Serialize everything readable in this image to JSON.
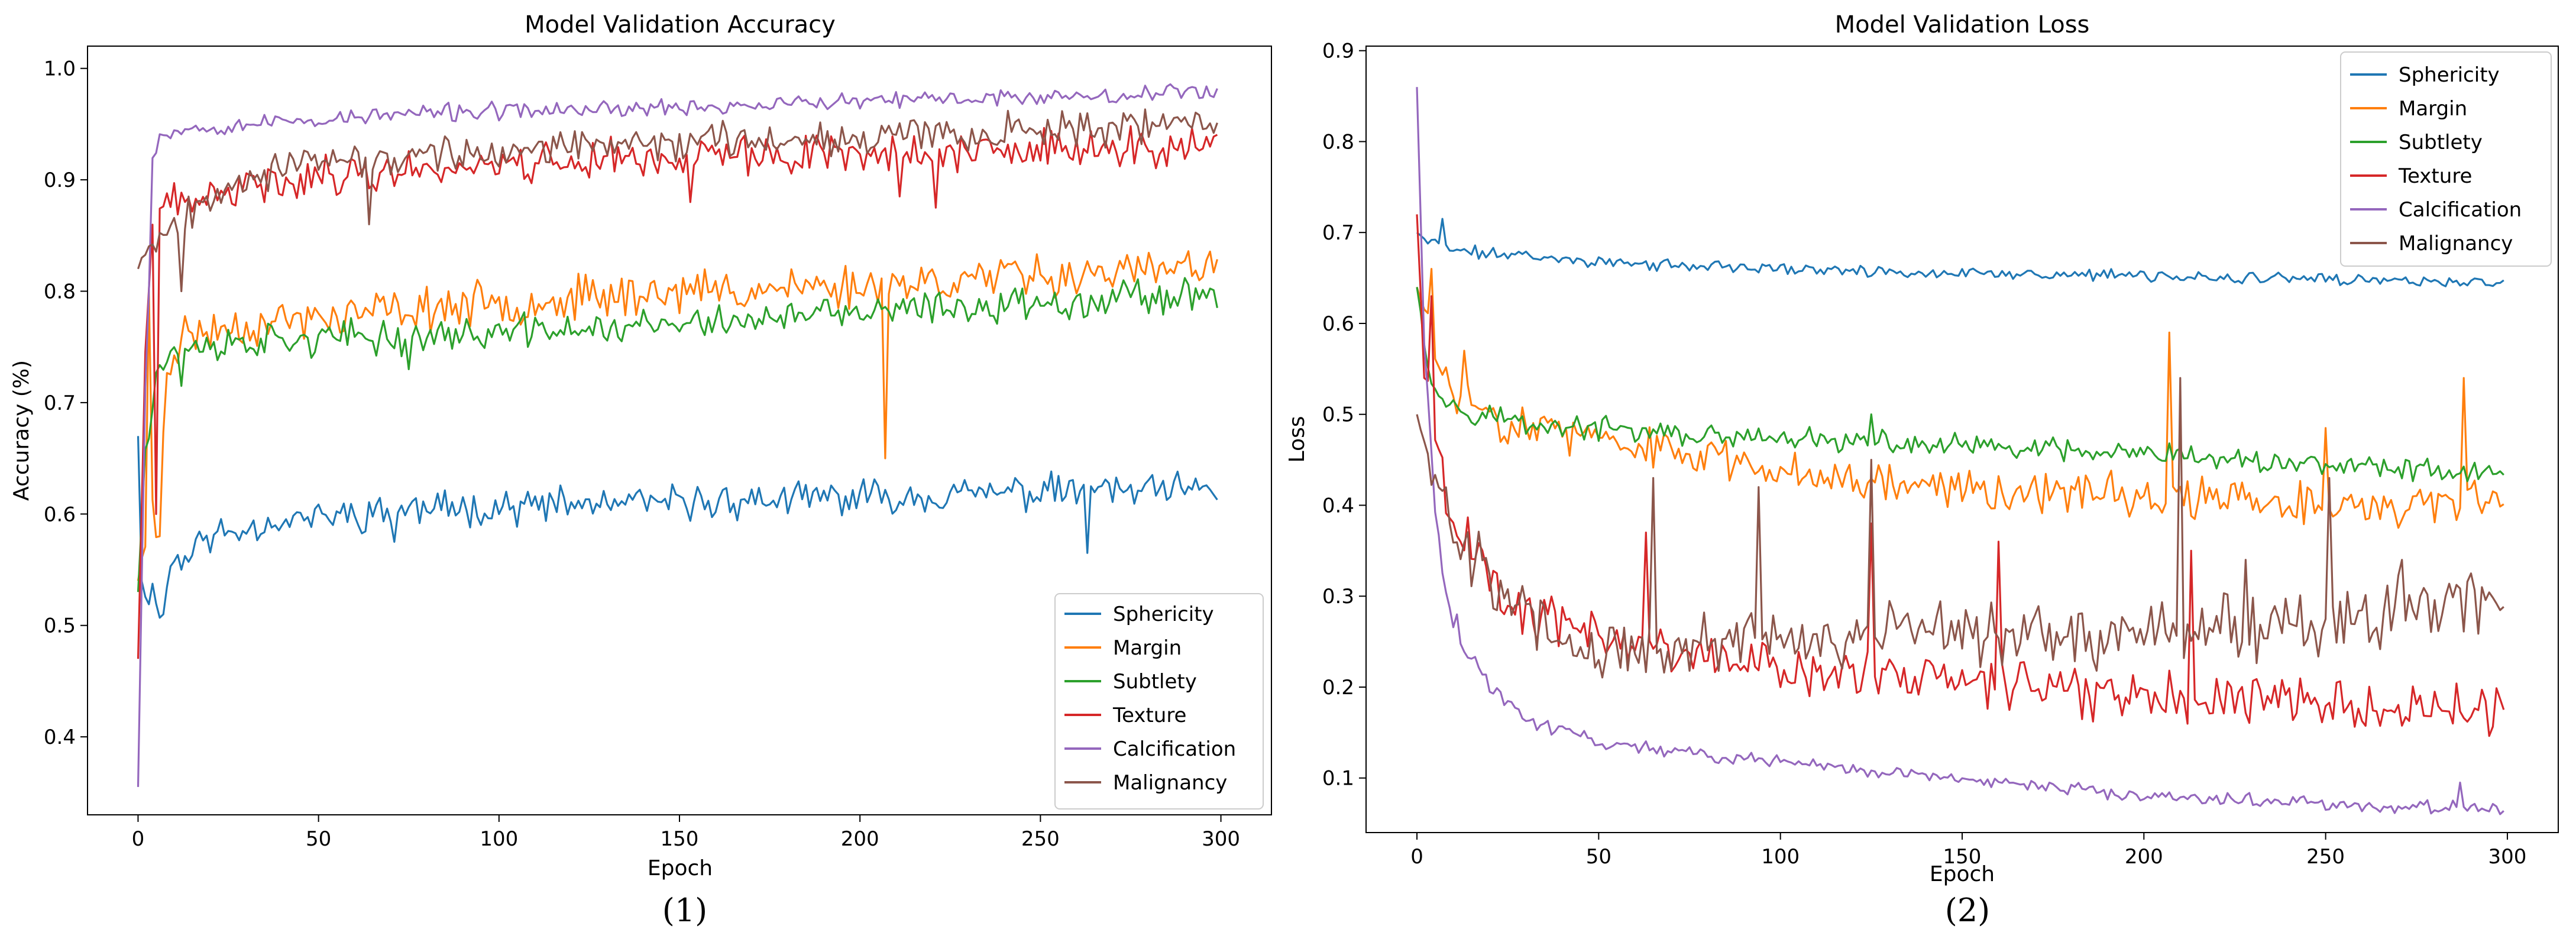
{
  "chart_data": [
    {
      "id": "acc",
      "type": "line",
      "title": "Model Validation Accuracy",
      "xlabel": "Epoch",
      "ylabel": "Accuracy (%)",
      "xlim": [
        -14,
        314
      ],
      "ylim": [
        0.33,
        1.02
      ],
      "xticks": [
        0,
        50,
        100,
        150,
        200,
        250,
        300
      ],
      "yticks": [
        0.4,
        0.5,
        0.6,
        0.7,
        0.8,
        0.9,
        1.0
      ],
      "ytick_labels": [
        "0.4",
        "0.5",
        "0.6",
        "0.7",
        "0.8",
        "0.9",
        "1.0"
      ],
      "grid": false,
      "legend_position": "lower-right",
      "caption": "(1)",
      "series": [
        {
          "name": "Sphericity",
          "color": "#1f77b4",
          "anchors": [
            [
              0,
              0.67
            ],
            [
              1,
              0.54
            ],
            [
              3,
              0.53
            ],
            [
              6,
              0.52
            ],
            [
              8,
              0.54
            ],
            [
              10,
              0.56
            ],
            [
              15,
              0.57
            ],
            [
              20,
              0.58
            ],
            [
              40,
              0.595
            ],
            [
              80,
              0.605
            ],
            [
              150,
              0.61
            ],
            [
              200,
              0.615
            ],
            [
              250,
              0.62
            ],
            [
              299,
              0.62
            ]
          ],
          "noise": 0.012,
          "seed": 11,
          "spikes": [
            [
              7,
              0.51
            ],
            [
              12,
              0.55
            ],
            [
              263,
              0.565
            ],
            [
              61,
              0.59
            ],
            [
              71,
              0.575
            ]
          ]
        },
        {
          "name": "Margin",
          "color": "#ff7f0e",
          "anchors": [
            [
              0,
              0.54
            ],
            [
              2,
              0.58
            ],
            [
              4,
              0.6
            ],
            [
              5,
              0.58
            ],
            [
              8,
              0.73
            ],
            [
              12,
              0.76
            ],
            [
              30,
              0.77
            ],
            [
              80,
              0.785
            ],
            [
              150,
              0.8
            ],
            [
              200,
              0.805
            ],
            [
              250,
              0.815
            ],
            [
              299,
              0.82
            ]
          ],
          "noise": 0.015,
          "seed": 23,
          "spikes": [
            [
              3,
              0.8
            ],
            [
              6,
              0.58
            ],
            [
              207,
              0.65
            ]
          ]
        },
        {
          "name": "Subtlety",
          "color": "#2ca02c",
          "anchors": [
            [
              0,
              0.53
            ],
            [
              2,
              0.66
            ],
            [
              5,
              0.73
            ],
            [
              10,
              0.745
            ],
            [
              30,
              0.755
            ],
            [
              80,
              0.76
            ],
            [
              150,
              0.77
            ],
            [
              200,
              0.78
            ],
            [
              250,
              0.79
            ],
            [
              299,
              0.8
            ]
          ],
          "noise": 0.012,
          "seed": 37,
          "spikes": [
            [
              12,
              0.715
            ],
            [
              75,
              0.73
            ]
          ]
        },
        {
          "name": "Texture",
          "color": "#d62728",
          "anchors": [
            [
              0,
              0.47
            ],
            [
              2,
              0.74
            ],
            [
              4,
              0.86
            ],
            [
              8,
              0.875
            ],
            [
              15,
              0.88
            ],
            [
              40,
              0.9
            ],
            [
              100,
              0.915
            ],
            [
              150,
              0.92
            ],
            [
              200,
              0.925
            ],
            [
              250,
              0.925
            ],
            [
              299,
              0.93
            ]
          ],
          "noise": 0.014,
          "seed": 41,
          "spikes": [
            [
              5,
              0.6
            ],
            [
              153,
              0.88
            ],
            [
              211,
              0.885
            ],
            [
              221,
              0.875
            ]
          ]
        },
        {
          "name": "Calcification",
          "color": "#9467bd",
          "anchors": [
            [
              0,
              0.355
            ],
            [
              2,
              0.72
            ],
            [
              4,
              0.92
            ],
            [
              6,
              0.94
            ],
            [
              10,
              0.945
            ],
            [
              30,
              0.95
            ],
            [
              80,
              0.96
            ],
            [
              150,
              0.965
            ],
            [
              200,
              0.97
            ],
            [
              250,
              0.975
            ],
            [
              299,
              0.98
            ]
          ],
          "noise": 0.006,
          "seed": 53,
          "spikes": [
            [
              3,
              0.8
            ]
          ]
        },
        {
          "name": "Malignancy",
          "color": "#8c564b",
          "anchors": [
            [
              0,
              0.82
            ],
            [
              2,
              0.84
            ],
            [
              5,
              0.85
            ],
            [
              10,
              0.86
            ],
            [
              25,
              0.9
            ],
            [
              50,
              0.915
            ],
            [
              100,
              0.925
            ],
            [
              150,
              0.935
            ],
            [
              200,
              0.94
            ],
            [
              250,
              0.945
            ],
            [
              299,
              0.95
            ]
          ],
          "noise": 0.012,
          "seed": 67,
          "spikes": [
            [
              12,
              0.8
            ],
            [
              64,
              0.86
            ]
          ]
        }
      ]
    },
    {
      "id": "loss",
      "type": "line",
      "title": "Model Validation Loss",
      "xlabel": "Epoch",
      "ylabel": "Loss",
      "xlim": [
        -14,
        314
      ],
      "ylim": [
        0.04,
        0.905
      ],
      "xticks": [
        0,
        50,
        100,
        150,
        200,
        250,
        300
      ],
      "yticks": [
        0.1,
        0.2,
        0.3,
        0.4,
        0.5,
        0.6,
        0.7,
        0.8,
        0.9
      ],
      "ytick_labels": [
        "0.1",
        "0.2",
        "0.3",
        "0.4",
        "0.5",
        "0.6",
        "0.7",
        "0.8",
        "0.9"
      ],
      "grid": false,
      "legend_position": "upper-right",
      "caption": "(2)",
      "series": [
        {
          "name": "Sphericity",
          "color": "#1f77b4",
          "anchors": [
            [
              0,
              0.7
            ],
            [
              3,
              0.69
            ],
            [
              10,
              0.68
            ],
            [
              30,
              0.675
            ],
            [
              60,
              0.665
            ],
            [
              100,
              0.66
            ],
            [
              150,
              0.655
            ],
            [
              200,
              0.652
            ],
            [
              250,
              0.648
            ],
            [
              299,
              0.645
            ]
          ],
          "noise": 0.005,
          "seed": 71,
          "spikes": [
            [
              7,
              0.715
            ]
          ]
        },
        {
          "name": "Margin",
          "color": "#ff7f0e",
          "anchors": [
            [
              0,
              0.64
            ],
            [
              3,
              0.6
            ],
            [
              6,
              0.55
            ],
            [
              10,
              0.52
            ],
            [
              20,
              0.5
            ],
            [
              50,
              0.47
            ],
            [
              100,
              0.44
            ],
            [
              150,
              0.42
            ],
            [
              200,
              0.41
            ],
            [
              250,
              0.4
            ],
            [
              299,
              0.4
            ]
          ],
          "noise": 0.018,
          "seed": 83,
          "spikes": [
            [
              4,
              0.66
            ],
            [
              13,
              0.57
            ],
            [
              207,
              0.59
            ],
            [
              250,
              0.485
            ],
            [
              288,
              0.54
            ]
          ]
        },
        {
          "name": "Subtlety",
          "color": "#2ca02c",
          "anchors": [
            [
              0,
              0.64
            ],
            [
              3,
              0.56
            ],
            [
              6,
              0.52
            ],
            [
              10,
              0.51
            ],
            [
              30,
              0.49
            ],
            [
              80,
              0.475
            ],
            [
              150,
              0.465
            ],
            [
              200,
              0.455
            ],
            [
              250,
              0.445
            ],
            [
              299,
              0.435
            ]
          ],
          "noise": 0.01,
          "seed": 97,
          "spikes": [
            [
              125,
              0.5
            ]
          ]
        },
        {
          "name": "Texture",
          "color": "#d62728",
          "anchors": [
            [
              0,
              0.72
            ],
            [
              2,
              0.55
            ],
            [
              5,
              0.47
            ],
            [
              10,
              0.38
            ],
            [
              20,
              0.33
            ],
            [
              30,
              0.28
            ],
            [
              45,
              0.26
            ],
            [
              70,
              0.24
            ],
            [
              100,
              0.22
            ],
            [
              150,
              0.21
            ],
            [
              200,
              0.19
            ],
            [
              250,
              0.185
            ],
            [
              299,
              0.17
            ]
          ],
          "noise": 0.022,
          "seed": 101,
          "spikes": [
            [
              4,
              0.63
            ],
            [
              63,
              0.37
            ],
            [
              125,
              0.38
            ],
            [
              160,
              0.36
            ],
            [
              213,
              0.35
            ]
          ]
        },
        {
          "name": "Calcification",
          "color": "#9467bd",
          "anchors": [
            [
              0,
              0.86
            ],
            [
              2,
              0.58
            ],
            [
              5,
              0.4
            ],
            [
              8,
              0.3
            ],
            [
              12,
              0.25
            ],
            [
              20,
              0.2
            ],
            [
              30,
              0.165
            ],
            [
              50,
              0.14
            ],
            [
              80,
              0.125
            ],
            [
              120,
              0.11
            ],
            [
              160,
              0.095
            ],
            [
              200,
              0.08
            ],
            [
              250,
              0.072
            ],
            [
              299,
              0.065
            ]
          ],
          "noise": 0.006,
          "seed": 113,
          "spikes": [
            [
              11,
              0.28
            ],
            [
              287,
              0.095
            ]
          ]
        },
        {
          "name": "Malignancy",
          "color": "#8c564b",
          "anchors": [
            [
              0,
              0.5
            ],
            [
              3,
              0.45
            ],
            [
              8,
              0.4
            ],
            [
              15,
              0.35
            ],
            [
              25,
              0.3
            ],
            [
              40,
              0.25
            ],
            [
              60,
              0.24
            ],
            [
              100,
              0.25
            ],
            [
              150,
              0.26
            ],
            [
              200,
              0.26
            ],
            [
              250,
              0.27
            ],
            [
              299,
              0.3
            ]
          ],
          "noise": 0.028,
          "seed": 127,
          "spikes": [
            [
              65,
              0.43
            ],
            [
              94,
              0.42
            ],
            [
              125,
              0.45
            ],
            [
              210,
              0.54
            ],
            [
              251,
              0.43
            ],
            [
              228,
              0.34
            ],
            [
              271,
              0.34
            ]
          ]
        }
      ]
    }
  ]
}
